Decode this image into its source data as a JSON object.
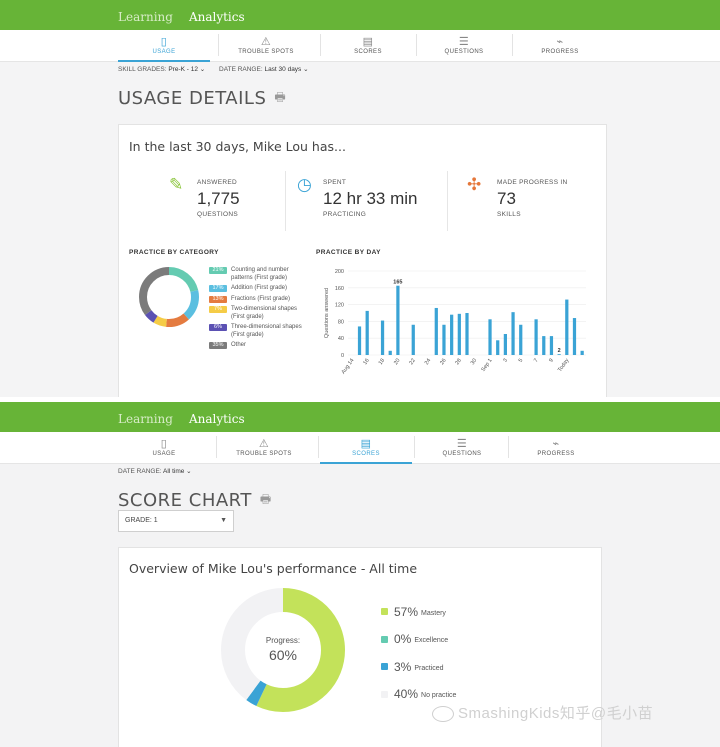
{
  "screen1": {
    "topbar": {
      "tabs": [
        "Learning",
        "Analytics"
      ],
      "active": 1
    },
    "subnav": [
      {
        "label": "USAGE",
        "icon": "▯",
        "icon_name": "usage-icon"
      },
      {
        "label": "TROUBLE SPOTS",
        "icon": "⚠",
        "icon_name": "warning-icon"
      },
      {
        "label": "SCORES",
        "icon": "▤",
        "icon_name": "scores-icon"
      },
      {
        "label": "QUESTIONS",
        "icon": "☰",
        "icon_name": "questions-icon"
      },
      {
        "label": "PROGRESS",
        "icon": "⌁",
        "icon_name": "progress-icon"
      }
    ],
    "active_subnav": 0,
    "filters": {
      "skill_label": "SKILL GRADES:",
      "skill_value": "Pre-K - 12",
      "date_label": "DATE RANGE:",
      "date_value": "Last 30 days"
    },
    "title": "USAGE DETAILS",
    "card_heading": "In the last 30 days, Mike Lou has...",
    "stats": [
      {
        "label": "ANSWERED",
        "value": "1,775",
        "sub": "QUESTIONS",
        "icon": "pencil-icon",
        "color": "#8dc63f"
      },
      {
        "label": "SPENT",
        "value": "12 hr 33 min",
        "sub": "PRACTICING",
        "icon": "clock-icon",
        "color": "#3aa3d5"
      },
      {
        "label": "MADE PROGRESS IN",
        "value": "73",
        "sub": "SKILLS",
        "icon": "puzzle-icon",
        "color": "#e5773a"
      }
    ],
    "category": {
      "heading": "PRACTICE BY CATEGORY",
      "items": [
        {
          "pct": "21%",
          "value": 21,
          "label": "Counting and number patterns (First grade)",
          "color": "#64cbb1"
        },
        {
          "pct": "17%",
          "value": 17,
          "label": "Addition (First grade)",
          "color": "#5bbfe0"
        },
        {
          "pct": "13%",
          "value": 13,
          "label": "Fractions (First grade)",
          "color": "#e47b40"
        },
        {
          "pct": "7%",
          "value": 7,
          "label": "Two-dimensional shapes (First grade)",
          "color": "#f5cc47"
        },
        {
          "pct": "6%",
          "value": 6,
          "label": "Three-dimensional shapes (First grade)",
          "color": "#5b51b3"
        },
        {
          "pct": "35%",
          "value": 35,
          "label": "Other",
          "color": "#7b7b7b"
        }
      ]
    },
    "chart_data": {
      "type": "bar",
      "title": "PRACTICE BY DAY",
      "ylabel": "Questions answered",
      "ylim": [
        0,
        200
      ],
      "yticks": [
        0,
        40,
        80,
        120,
        160,
        200
      ],
      "xtick_labels": [
        "Aug 14",
        "16",
        "18",
        "20",
        "22",
        "24",
        "26",
        "28",
        "30",
        "Sep 1",
        "3",
        "5",
        "7",
        "9",
        "Today"
      ],
      "categories": [
        "Aug 14",
        "Aug 15",
        "Aug 16",
        "Aug 17",
        "Aug 18",
        "Aug 19",
        "Aug 20",
        "Aug 21",
        "Aug 22",
        "Aug 23",
        "Aug 24",
        "Aug 25",
        "Aug 26",
        "Aug 27",
        "Aug 28",
        "Aug 29",
        "Aug 30",
        "Aug 31",
        "Sep 1",
        "Sep 2",
        "Sep 3",
        "Sep 4",
        "Sep 5",
        "Sep 6",
        "Sep 7",
        "Sep 8",
        "Sep 9",
        "Sep 10",
        "Sep 11",
        "Sep 12",
        "Sep 13"
      ],
      "values": [
        0,
        68,
        105,
        0,
        82,
        10,
        165,
        0,
        72,
        0,
        0,
        112,
        72,
        96,
        98,
        100,
        0,
        0,
        85,
        35,
        50,
        102,
        72,
        0,
        85,
        45,
        45,
        2,
        132,
        88,
        10
      ],
      "labeled": {
        "6": "165",
        "27": "2"
      },
      "color": "#3aa3d5"
    }
  },
  "screen2": {
    "topbar": {
      "tabs": [
        "Learning",
        "Analytics"
      ],
      "active": 1
    },
    "subnav": [
      {
        "label": "USAGE",
        "icon": "▯",
        "icon_name": "usage-icon"
      },
      {
        "label": "TROUBLE SPOTS",
        "icon": "⚠",
        "icon_name": "warning-icon"
      },
      {
        "label": "SCORES",
        "icon": "▤",
        "icon_name": "scores-icon"
      },
      {
        "label": "QUESTIONS",
        "icon": "☰",
        "icon_name": "questions-icon"
      },
      {
        "label": "PROGRESS",
        "icon": "⌁",
        "icon_name": "progress-icon"
      }
    ],
    "active_subnav": 2,
    "filters": {
      "date_label": "DATE RANGE:",
      "date_value": "All time"
    },
    "title": "SCORE CHART",
    "grade_select": {
      "label": "GRADE:",
      "value": "1"
    },
    "card_heading": "Overview of Mike Lou's performance - All time",
    "progress_label": "Progress:",
    "progress_value": "60%",
    "performance": [
      {
        "pct": "57%",
        "value": 57,
        "label": "Mastery",
        "color": "#c3e25a"
      },
      {
        "pct": "0%",
        "value": 0,
        "label": "Excellence",
        "color": "#64cbb1"
      },
      {
        "pct": "3%",
        "value": 3,
        "label": "Practiced",
        "color": "#3aa3d5"
      },
      {
        "pct": "40%",
        "value": 40,
        "label": "No practice",
        "color": "#f2f2f4"
      }
    ],
    "watermark": "SmashingKids知乎@毛小苗"
  }
}
